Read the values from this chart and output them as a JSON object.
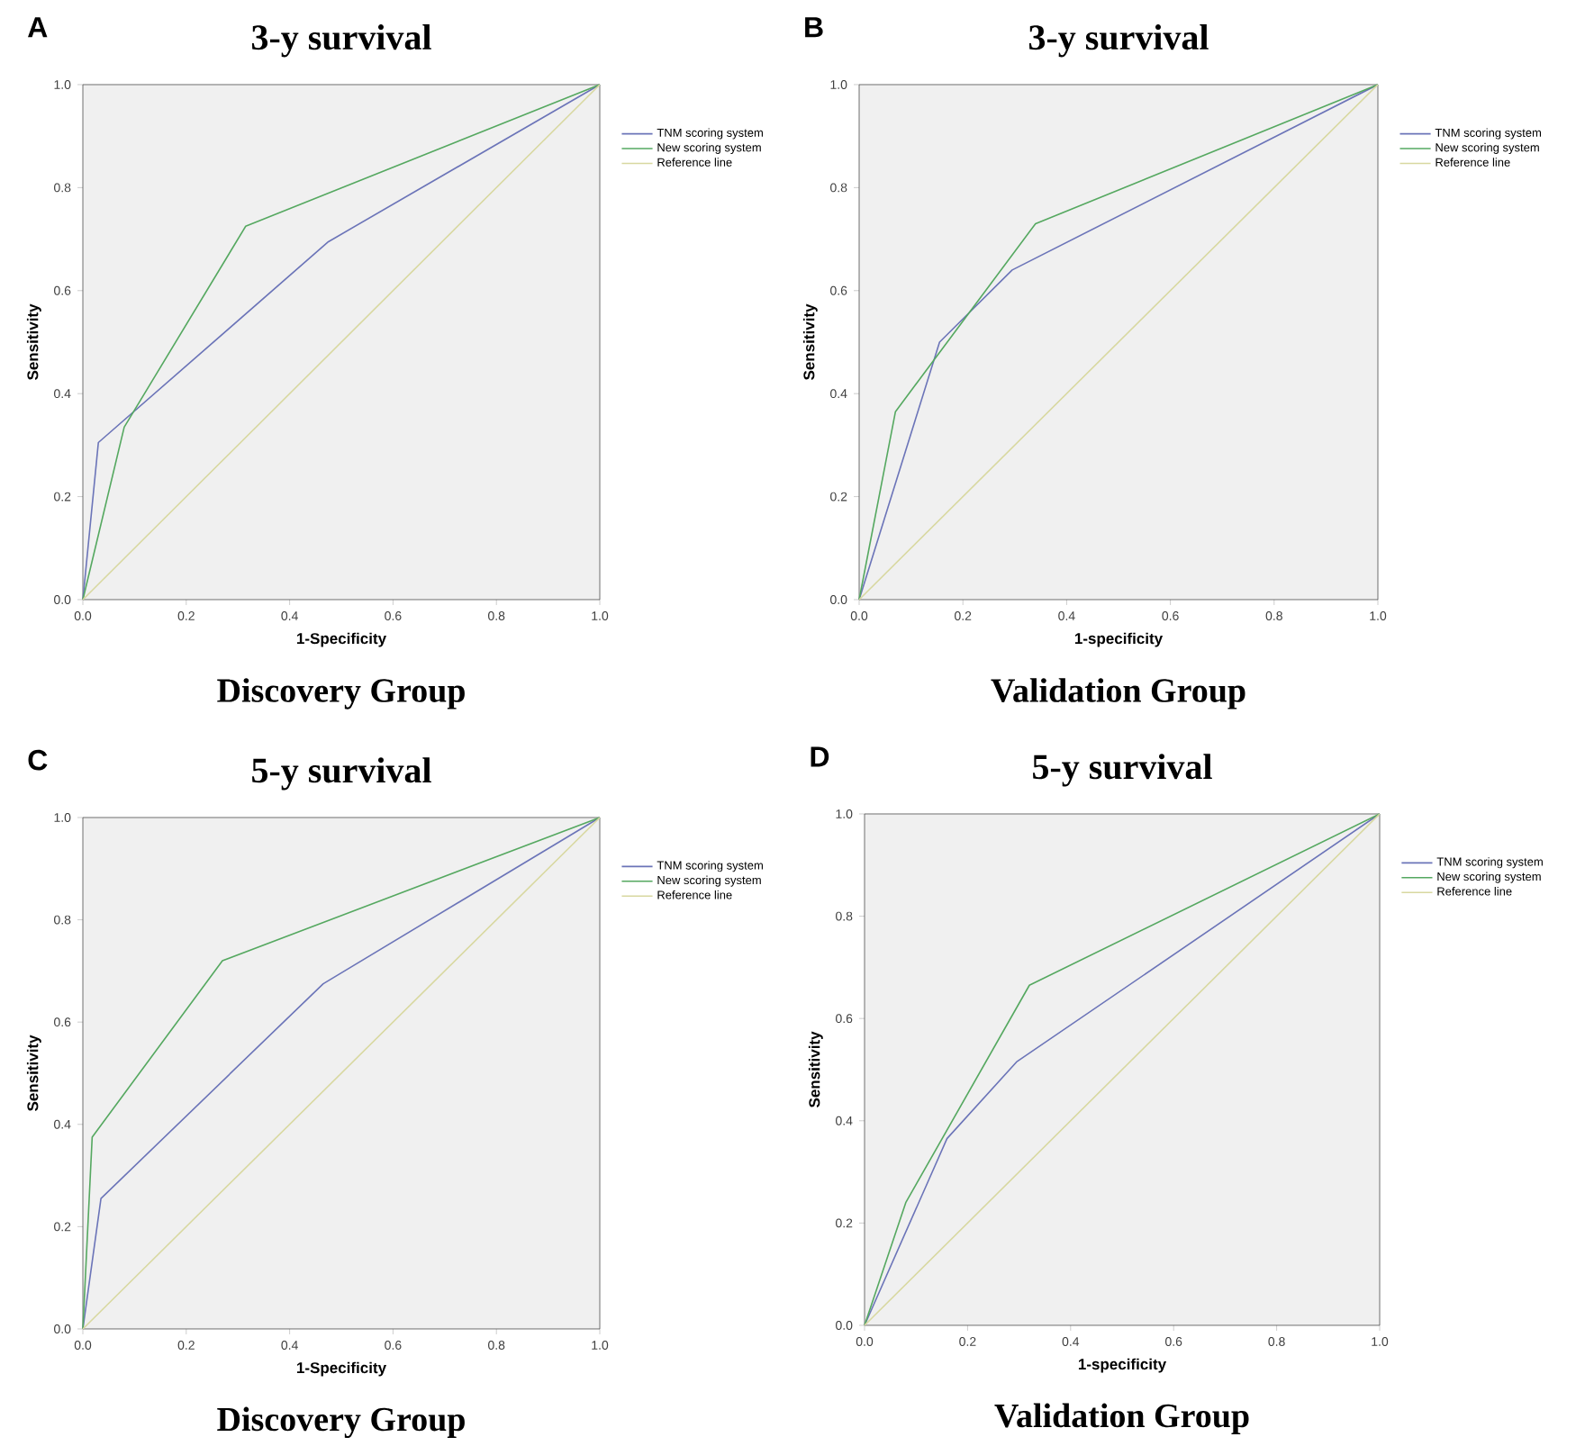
{
  "chart_data": [
    {
      "type": "line",
      "title": "3-y survival",
      "xlabel": "1-Specificity",
      "ylabel": "Sensitivity",
      "annotations": [
        "A",
        "Discovery Group"
      ],
      "legend": "right",
      "xlim": [
        0,
        1
      ],
      "ylim": [
        0,
        1
      ],
      "xticks": [
        {
          "value": 0,
          "label": "0.0"
        },
        {
          "value": 0.2,
          "label": "0.2"
        },
        {
          "value": 0.4,
          "label": "0.4"
        },
        {
          "value": 0.6,
          "label": "0.6"
        },
        {
          "value": 0.8,
          "label": "0.8"
        },
        {
          "value": 1,
          "label": "1.0"
        }
      ],
      "yticks": [
        {
          "value": 0,
          "label": "0.0"
        },
        {
          "value": 0.2,
          "label": "0.2"
        },
        {
          "value": 0.4,
          "label": "0.4"
        },
        {
          "value": 0.6,
          "label": "0.6"
        },
        {
          "value": 0.8,
          "label": "0.8"
        },
        {
          "value": 1,
          "label": "1.0"
        }
      ],
      "series": [
        {
          "name": "TNM scoring system",
          "color": "#6b74b8",
          "x": [
            0,
            0.03,
            0.475,
            1
          ],
          "values": [
            0,
            0.305,
            0.695,
            1
          ]
        },
        {
          "name": "New scoring system",
          "color": "#55a860",
          "x": [
            0,
            0.08,
            0.315,
            1
          ],
          "values": [
            0,
            0.335,
            0.725,
            1
          ]
        },
        {
          "name": "Reference line",
          "color": "#d8d8a0",
          "x": [
            0,
            1
          ],
          "values": [
            0,
            1
          ]
        }
      ]
    },
    {
      "type": "line",
      "title": "3-y survival",
      "xlabel": "1-specificity",
      "ylabel": "Sensitivity",
      "annotations": [
        "B",
        "Validation Group"
      ],
      "legend": "right",
      "xlim": [
        0,
        1
      ],
      "ylim": [
        0,
        1
      ],
      "xticks": [
        {
          "value": 0,
          "label": "0.0"
        },
        {
          "value": 0.2,
          "label": "0.2"
        },
        {
          "value": 0.4,
          "label": "0.4"
        },
        {
          "value": 0.6,
          "label": "0.6"
        },
        {
          "value": 0.8,
          "label": "0.8"
        },
        {
          "value": 1,
          "label": "1.0"
        }
      ],
      "yticks": [
        {
          "value": 0,
          "label": "0.0"
        },
        {
          "value": 0.2,
          "label": "0.2"
        },
        {
          "value": 0.4,
          "label": "0.4"
        },
        {
          "value": 0.6,
          "label": "0.6"
        },
        {
          "value": 0.8,
          "label": "0.8"
        },
        {
          "value": 1,
          "label": "1.0"
        }
      ],
      "series": [
        {
          "name": "TNM scoring system",
          "color": "#6b74b8",
          "x": [
            0,
            0.155,
            0.295,
            1
          ],
          "values": [
            0,
            0.5,
            0.64,
            1
          ]
        },
        {
          "name": "New scoring system",
          "color": "#55a860",
          "x": [
            0,
            0.07,
            0.34,
            1
          ],
          "values": [
            0,
            0.365,
            0.73,
            1
          ]
        },
        {
          "name": "Reference line",
          "color": "#d8d8a0",
          "x": [
            0,
            1
          ],
          "values": [
            0,
            1
          ]
        }
      ]
    },
    {
      "type": "line",
      "title": "5-y survival",
      "xlabel": "1-Specificity",
      "ylabel": "Sensitivity",
      "annotations": [
        "C",
        "Discovery Group"
      ],
      "legend": "right",
      "xlim": [
        0,
        1
      ],
      "ylim": [
        0,
        1
      ],
      "xticks": [
        {
          "value": 0,
          "label": "0.0"
        },
        {
          "value": 0.2,
          "label": "0.2"
        },
        {
          "value": 0.4,
          "label": "0.4"
        },
        {
          "value": 0.6,
          "label": "0.6"
        },
        {
          "value": 0.8,
          "label": "0.8"
        },
        {
          "value": 1,
          "label": "1.0"
        }
      ],
      "yticks": [
        {
          "value": 0,
          "label": "0.0"
        },
        {
          "value": 0.2,
          "label": "0.2"
        },
        {
          "value": 0.4,
          "label": "0.4"
        },
        {
          "value": 0.6,
          "label": "0.6"
        },
        {
          "value": 0.8,
          "label": "0.8"
        },
        {
          "value": 1,
          "label": "1.0"
        }
      ],
      "series": [
        {
          "name": "TNM scoring system",
          "color": "#6b74b8",
          "x": [
            0,
            0.035,
            0.465,
            1
          ],
          "values": [
            0,
            0.255,
            0.675,
            1
          ]
        },
        {
          "name": "New scoring system",
          "color": "#55a860",
          "x": [
            0,
            0.018,
            0.27,
            1
          ],
          "values": [
            0,
            0.375,
            0.72,
            1
          ]
        },
        {
          "name": "Reference line",
          "color": "#d8d8a0",
          "x": [
            0,
            1
          ],
          "values": [
            0,
            1
          ]
        }
      ]
    },
    {
      "type": "line",
      "title": "5-y survival",
      "xlabel": "1-specificity",
      "ylabel": "Sensitivity",
      "annotations": [
        "D",
        "Validation Group"
      ],
      "legend": "right",
      "xlim": [
        0,
        1
      ],
      "ylim": [
        0,
        1
      ],
      "xticks": [
        {
          "value": 0,
          "label": "0.0"
        },
        {
          "value": 0.2,
          "label": "0.2"
        },
        {
          "value": 0.4,
          "label": "0.4"
        },
        {
          "value": 0.6,
          "label": "0.6"
        },
        {
          "value": 0.8,
          "label": "0.8"
        },
        {
          "value": 1,
          "label": "1.0"
        }
      ],
      "yticks": [
        {
          "value": 0,
          "label": "0.0"
        },
        {
          "value": 0.2,
          "label": "0.2"
        },
        {
          "value": 0.4,
          "label": "0.4"
        },
        {
          "value": 0.6,
          "label": "0.6"
        },
        {
          "value": 0.8,
          "label": "0.8"
        },
        {
          "value": 1,
          "label": "1.0"
        }
      ],
      "series": [
        {
          "name": "TNM scoring system",
          "color": "#6b74b8",
          "x": [
            0,
            0.16,
            0.295,
            1
          ],
          "values": [
            0,
            0.365,
            0.515,
            1
          ]
        },
        {
          "name": "New scoring system",
          "color": "#55a860",
          "x": [
            0,
            0.08,
            0.32,
            1
          ],
          "values": [
            0,
            0.24,
            0.665,
            1
          ]
        },
        {
          "name": "Reference line",
          "color": "#d8d8a0",
          "x": [
            0,
            1
          ],
          "values": [
            0,
            1
          ]
        }
      ]
    }
  ]
}
